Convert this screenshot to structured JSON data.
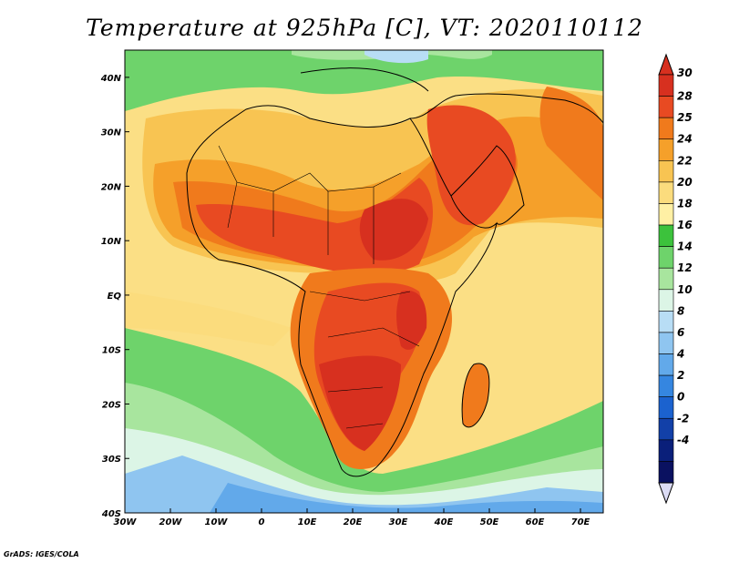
{
  "title": "Temperature at 925hPa [C], VT: 2020110112",
  "credit": "GrADS: IGES/COLA",
  "map": {
    "lon_range": [
      -30,
      75
    ],
    "lat_range": [
      -40,
      45
    ],
    "lon_ticks": [
      "30W",
      "20W",
      "10W",
      "0",
      "10E",
      "20E",
      "30E",
      "40E",
      "50E",
      "60E",
      "70E"
    ],
    "lat_ticks": [
      "40N",
      "30N",
      "20N",
      "10N",
      "EQ",
      "10S",
      "20S",
      "30S",
      "40S"
    ]
  },
  "colorbar": {
    "labels": [
      "30",
      "28",
      "25",
      "24",
      "22",
      "20",
      "18",
      "16",
      "14",
      "12",
      "10",
      "8",
      "6",
      "4",
      "2",
      "0",
      "-2",
      "-4"
    ],
    "colors": [
      "#d7301f",
      "#e84a22",
      "#f07a1c",
      "#f5a02a",
      "#f8c452",
      "#fbdc7d",
      "#fff0a4",
      "#3cc23c",
      "#6ed36b",
      "#a8e59e",
      "#dcf5e6",
      "#b8ddf5",
      "#8fc5f0",
      "#62a9ea",
      "#3586e0",
      "#1b62cf",
      "#1240a8",
      "#0a1f7a",
      "#0a1160"
    ],
    "arrow_top_color": "#d7301f",
    "arrow_bottom_color": "#dcdcf5"
  },
  "colors": {
    "ocean_warm": "#fce79a",
    "ocean_cool": "#8fd38a",
    "land_hot": "#e8521f",
    "land_very_hot": "#d7301f",
    "cold_sea": "#b8ddf5"
  }
}
